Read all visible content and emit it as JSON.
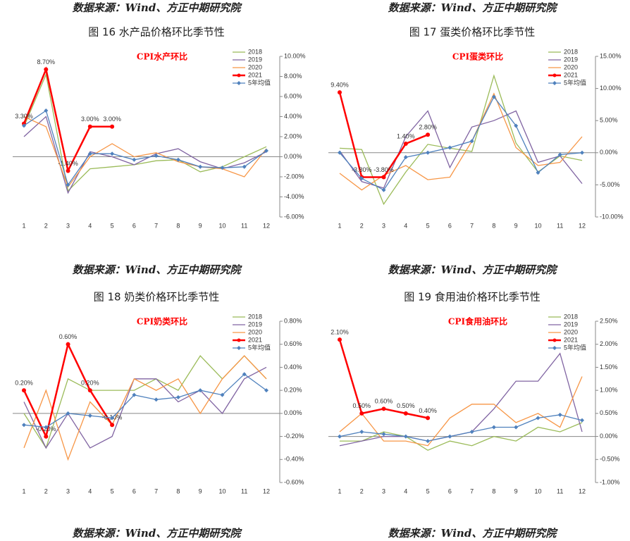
{
  "sources": [
    "数据来源：Wind、方正中期研究院",
    "数据来源：Wind、方正中期研究院",
    "数据来源：Wind、方正中期研究院",
    "数据来源：Wind、方正中期研究院",
    "数据来源：Wind、方正中期研究院",
    "数据来源：Wind、方正中期研究院"
  ],
  "captions": [
    "图 16 水产品价格环比季节性",
    "图 17 蛋类价格环比季节性",
    "图 18 奶类价格环比季节性",
    "图 19 食用油价格环比季节性"
  ],
  "chart_data": [
    {
      "type": "line",
      "title": "CPI水产环比",
      "categories": [
        "1",
        "2",
        "3",
        "4",
        "5",
        "6",
        "7",
        "8",
        "9",
        "10",
        "11",
        "12"
      ],
      "ylim": [
        -6,
        10
      ],
      "yticks": [
        {
          "value": 10,
          "label": "10.00%"
        },
        {
          "value": 8,
          "label": "8.00%"
        },
        {
          "value": 6,
          "label": "6.00%"
        },
        {
          "value": 4,
          "label": "4.00%"
        },
        {
          "value": 2,
          "label": "2.00%"
        },
        {
          "value": 0,
          "label": "0.00%"
        },
        {
          "value": -2,
          "label": "-2.00%"
        },
        {
          "value": -4,
          "label": "-4.00%"
        },
        {
          "value": -6,
          "label": "-6.00%"
        }
      ],
      "series": [
        {
          "name": "2018",
          "color": "#9bbb59",
          "values": [
            3.0,
            8.2,
            -3.4,
            -1.2,
            -1.0,
            -0.8,
            -0.4,
            -0.3,
            -1.5,
            -1.0,
            0.0,
            1.0
          ]
        },
        {
          "name": "2019",
          "color": "#8064a2",
          "values": [
            2.0,
            4.0,
            -3.6,
            0.5,
            0.0,
            -0.8,
            0.3,
            0.8,
            -0.5,
            -1.2,
            -0.6,
            0.5
          ]
        },
        {
          "name": "2020",
          "color": "#f79646",
          "values": [
            4.0,
            3.0,
            -3.0,
            0.0,
            1.3,
            0.0,
            0.4,
            -0.5,
            -1.0,
            -1.2,
            -2.0,
            0.8
          ]
        },
        {
          "name": "2021",
          "color": "#ff0000",
          "marker": "circle",
          "values": [
            3.3,
            8.7,
            -1.4,
            3.0,
            3.0,
            null,
            null,
            null,
            null,
            null,
            null,
            null
          ],
          "value_labels": [
            "3.30%",
            "8.70%",
            "-1.40%",
            "3.00%",
            "3.00%"
          ]
        },
        {
          "name": "5年均值",
          "color": "#4f81bd",
          "marker": "diamond",
          "values": [
            3.1,
            4.6,
            -2.8,
            0.3,
            0.3,
            -0.3,
            0.1,
            -0.3,
            -1.0,
            -1.1,
            -1.0,
            0.6
          ]
        }
      ]
    },
    {
      "type": "line",
      "title": "CPI蛋类环比",
      "categories": [
        "1",
        "2",
        "3",
        "4",
        "5",
        "6",
        "7",
        "8",
        "9",
        "10",
        "11",
        "12"
      ],
      "ylim": [
        -10,
        15
      ],
      "yticks": [
        {
          "value": 15,
          "label": "15.00%"
        },
        {
          "value": 10,
          "label": "10.00%"
        },
        {
          "value": 5,
          "label": "5.00%"
        },
        {
          "value": 0,
          "label": "0.00%"
        },
        {
          "value": -5,
          "label": "-5.00%"
        },
        {
          "value": -10,
          "label": "-10.00%"
        }
      ],
      "series": [
        {
          "name": "2018",
          "color": "#9bbb59",
          "values": [
            0.7,
            0.5,
            -8.0,
            -3.0,
            1.3,
            0.7,
            0.2,
            12.0,
            1.5,
            -3.0,
            -0.5,
            -1.2
          ]
        },
        {
          "name": "2019",
          "color": "#8064a2",
          "values": [
            0.3,
            -4.5,
            -5.5,
            2.5,
            6.5,
            -2.3,
            4.0,
            5.0,
            6.5,
            -1.5,
            -0.5,
            -4.8
          ]
        },
        {
          "name": "2020",
          "color": "#f79646",
          "values": [
            -3.2,
            -5.8,
            -3.5,
            -2.0,
            -4.2,
            -3.8,
            1.8,
            9.2,
            0.8,
            -2.0,
            -1.5,
            2.5
          ]
        },
        {
          "name": "2021",
          "color": "#ff0000",
          "marker": "circle",
          "values": [
            9.4,
            -3.8,
            -3.8,
            1.4,
            2.8,
            null,
            null,
            null,
            null,
            null,
            null,
            null
          ],
          "value_labels": [
            "9.40%",
            "-3.80%",
            "-3.80%",
            "1.40%",
            "2.80%"
          ]
        },
        {
          "name": "5年均值",
          "color": "#4f81bd",
          "marker": "diamond",
          "values": [
            0.0,
            -4.0,
            -5.8,
            -0.7,
            0.0,
            0.8,
            1.8,
            8.7,
            4.2,
            -3.1,
            -0.3,
            0.0
          ]
        }
      ]
    },
    {
      "type": "line",
      "title": "CPI奶类环比",
      "categories": [
        "1",
        "2",
        "3",
        "4",
        "5",
        "6",
        "7",
        "8",
        "9",
        "10",
        "11",
        "12"
      ],
      "ylim": [
        -0.6,
        0.8
      ],
      "yticks": [
        {
          "value": 0.8,
          "label": "0.80%"
        },
        {
          "value": 0.6,
          "label": "0.60%"
        },
        {
          "value": 0.4,
          "label": "0.40%"
        },
        {
          "value": 0.2,
          "label": "0.20%"
        },
        {
          "value": 0,
          "label": "0.00%"
        },
        {
          "value": -0.2,
          "label": "-0.20%"
        },
        {
          "value": -0.4,
          "label": "-0.40%"
        },
        {
          "value": -0.6,
          "label": "-0.60%"
        }
      ],
      "series": [
        {
          "name": "2018",
          "color": "#9bbb59",
          "values": [
            0.0,
            -0.3,
            0.3,
            0.2,
            0.2,
            0.2,
            0.3,
            0.2,
            0.5,
            0.3,
            0.5,
            0.3
          ]
        },
        {
          "name": "2019",
          "color": "#8064a2",
          "values": [
            0.1,
            -0.3,
            0.0,
            -0.3,
            -0.2,
            0.3,
            0.3,
            0.1,
            0.2,
            0.0,
            0.3,
            0.4
          ]
        },
        {
          "name": "2020",
          "color": "#f79646",
          "values": [
            -0.3,
            0.2,
            -0.4,
            0.1,
            -0.1,
            0.3,
            0.2,
            0.3,
            0.0,
            0.3,
            0.5,
            0.3
          ]
        },
        {
          "name": "2021",
          "color": "#ff0000",
          "marker": "circle",
          "values": [
            0.2,
            -0.2,
            0.6,
            0.2,
            -0.1,
            null,
            null,
            null,
            null,
            null,
            null,
            null
          ],
          "value_labels": [
            "0.20%",
            "-0.20%",
            "0.60%",
            "0.20%",
            "-0.10%"
          ]
        },
        {
          "name": "5年均值",
          "color": "#4f81bd",
          "marker": "diamond",
          "values": [
            -0.1,
            -0.12,
            0.0,
            -0.02,
            -0.04,
            0.16,
            0.12,
            0.14,
            0.2,
            0.16,
            0.34,
            0.2
          ]
        }
      ]
    },
    {
      "type": "line",
      "title": "CPI食用油环比",
      "categories": [
        "1",
        "2",
        "3",
        "4",
        "5",
        "6",
        "7",
        "8",
        "9",
        "10",
        "11",
        "12"
      ],
      "ylim": [
        -1.0,
        2.5
      ],
      "yticks": [
        {
          "value": 2.5,
          "label": "2.50%"
        },
        {
          "value": 2.0,
          "label": "2.00%"
        },
        {
          "value": 1.5,
          "label": "1.50%"
        },
        {
          "value": 1.0,
          "label": "1.00%"
        },
        {
          "value": 0.5,
          "label": "0.50%"
        },
        {
          "value": 0,
          "label": "0.00%"
        },
        {
          "value": -0.5,
          "label": "-0.50%"
        },
        {
          "value": -1.0,
          "label": "-1.00%"
        }
      ],
      "series": [
        {
          "name": "2018",
          "color": "#9bbb59",
          "values": [
            -0.1,
            -0.1,
            0.1,
            0.0,
            -0.3,
            -0.1,
            -0.2,
            0.0,
            -0.1,
            0.2,
            0.1,
            0.3
          ]
        },
        {
          "name": "2019",
          "color": "#8064a2",
          "values": [
            -0.2,
            -0.1,
            0.0,
            0.0,
            -0.1,
            0.0,
            0.1,
            0.6,
            1.2,
            1.2,
            1.8,
            0.1
          ]
        },
        {
          "name": "2020",
          "color": "#f79646",
          "values": [
            0.1,
            0.5,
            -0.1,
            -0.1,
            -0.2,
            0.4,
            0.7,
            0.7,
            0.3,
            0.5,
            0.2,
            1.3
          ]
        },
        {
          "name": "2021",
          "color": "#ff0000",
          "marker": "circle",
          "values": [
            2.1,
            0.5,
            0.6,
            0.5,
            0.4,
            null,
            null,
            null,
            null,
            null,
            null,
            null
          ],
          "value_labels": [
            "2.10%",
            "0.50%",
            "0.60%",
            "0.50%",
            "0.40%"
          ]
        },
        {
          "name": "5年均值",
          "color": "#4f81bd",
          "marker": "diamond",
          "values": [
            0.0,
            0.1,
            0.05,
            0.0,
            -0.1,
            0.0,
            0.1,
            0.2,
            0.2,
            0.4,
            0.47,
            0.35
          ]
        }
      ]
    }
  ]
}
